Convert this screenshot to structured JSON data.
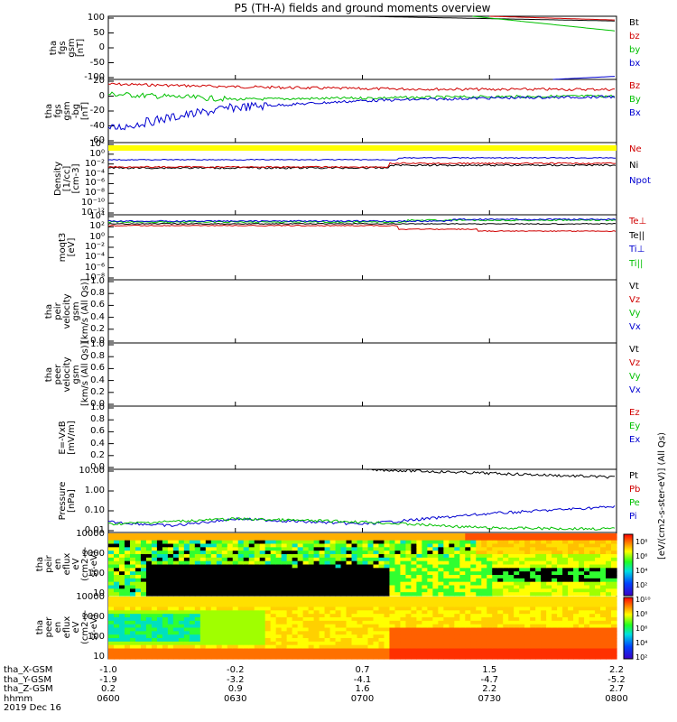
{
  "title": "P5 (TH-A) fields and ground moments overview",
  "panels": [
    {
      "id": "fgs_gsm",
      "ylabel": [
        "tha",
        "fgs",
        "gsm",
        "[nT]"
      ],
      "ticks": [
        "100",
        "50",
        "0",
        "-50",
        "-100"
      ],
      "legend": [
        {
          "t": "Bt",
          "c": "#000000"
        },
        {
          "t": "bz",
          "c": "#d00000"
        },
        {
          "t": "by",
          "c": "#00c000"
        },
        {
          "t": "bx",
          "c": "#0000d0"
        }
      ]
    },
    {
      "id": "fgs_gsm_dsl",
      "ylabel": [
        "tha",
        "fgs",
        "gsm",
        "-bg",
        "[nT]"
      ],
      "ticks": [
        "20",
        "0",
        "-20",
        "-40",
        "-60"
      ],
      "legend": [
        {
          "t": "Bz",
          "c": "#d00000"
        },
        {
          "t": "By",
          "c": "#00c000"
        },
        {
          "t": "Bx",
          "c": "#0000d0"
        }
      ]
    },
    {
      "id": "density",
      "ylabel": [
        "Density",
        "[1/cc]",
        "[cm-3]"
      ],
      "ticks": [
        "10²",
        "10⁰",
        "10⁻²",
        "10⁻⁴",
        "10⁻⁶",
        "10⁻⁸",
        "10⁻¹⁰",
        "10⁻¹²"
      ],
      "legend": [
        {
          "t": "Ne",
          "c": "#d00000"
        },
        {
          "t": "Ni",
          "c": "#000000"
        },
        {
          "t": "Npot",
          "c": "#0000d0"
        }
      ]
    },
    {
      "id": "temp",
      "ylabel": [
        "moqt3",
        "[eV]"
      ],
      "ticks": [
        "10⁴",
        "10²",
        "10⁰",
        "10⁻²",
        "10⁻⁴",
        "10⁻⁶",
        "10⁻⁸"
      ],
      "legend": [
        {
          "t": "Te⊥",
          "c": "#d00000"
        },
        {
          "t": "Te||",
          "c": "#000000"
        },
        {
          "t": "Ti⊥",
          "c": "#0000d0"
        },
        {
          "t": "Ti||",
          "c": "#00c000"
        }
      ]
    },
    {
      "id": "peir_vel",
      "ylabel": [
        "tha",
        "peir",
        "velocity",
        "gsm",
        "[km/s (All Qs)]"
      ],
      "ticks": [
        "1.0",
        "0.8",
        "0.6",
        "0.4",
        "0.2",
        "0.0"
      ],
      "legend": [
        {
          "t": "Vt",
          "c": "#000000"
        },
        {
          "t": "Vz",
          "c": "#d00000"
        },
        {
          "t": "Vy",
          "c": "#00c000"
        },
        {
          "t": "Vx",
          "c": "#0000d0"
        }
      ]
    },
    {
      "id": "peer_vel",
      "ylabel": [
        "tha",
        "peer",
        "velocity",
        "gsm",
        "[km/s (All Qs)]"
      ],
      "ticks": [
        "1.0",
        "0.8",
        "0.6",
        "0.4",
        "0.2",
        "0.0"
      ],
      "legend": [
        {
          "t": "Vt",
          "c": "#000000"
        },
        {
          "t": "Vz",
          "c": "#d00000"
        },
        {
          "t": "Vy",
          "c": "#00c000"
        },
        {
          "t": "Vx",
          "c": "#0000d0"
        }
      ]
    },
    {
      "id": "efield",
      "ylabel": [
        "E=-VxB",
        "[mV/m]"
      ],
      "ticks": [
        "1.0",
        "0.8",
        "0.6",
        "0.4",
        "0.2",
        "0.0"
      ],
      "legend": [
        {
          "t": "Ez",
          "c": "#d00000"
        },
        {
          "t": "Ey",
          "c": "#00c000"
        },
        {
          "t": "Ex",
          "c": "#0000d0"
        }
      ]
    },
    {
      "id": "pressure",
      "ylabel": [
        "Pressure",
        "[nPa]"
      ],
      "ticks": [
        "10.00",
        "1.00",
        "0.10",
        "0.01"
      ],
      "legend": [
        {
          "t": "Pt",
          "c": "#000000"
        },
        {
          "t": "Pb",
          "c": "#d00000"
        },
        {
          "t": "Pe",
          "c": "#00c000"
        },
        {
          "t": "Pi",
          "c": "#0000d0"
        }
      ]
    },
    {
      "id": "peir_en",
      "ylabel": [
        "tha",
        "peir",
        "en",
        "eflux",
        "eV",
        "(cm2-s-",
        "sr-eV)"
      ],
      "ticks": [
        "10000",
        "1000",
        "100",
        "10"
      ],
      "legend": []
    },
    {
      "id": "peer_en",
      "ylabel": [
        "tha",
        "peer",
        "en",
        "eflux",
        "eV",
        "(cm2-s-",
        "sr-eV)"
      ],
      "ticks": [
        "10000",
        "1000",
        "100",
        "10"
      ],
      "legend": []
    }
  ],
  "colorbar": {
    "label": "[eV/(cm2-s-ster-eV)] (All Qs)",
    "ticks": [
      "10⁸",
      "10⁶",
      "10⁴",
      "10²",
      "10¹⁰",
      "10⁸",
      "10⁶",
      "10⁴",
      "10²"
    ]
  },
  "ephemeris": {
    "rows": [
      {
        "label": "tha_X-GSM",
        "values": [
          "-1.0",
          "-0.2",
          "0.7",
          "1.5",
          "2.2"
        ]
      },
      {
        "label": "tha_Y-GSM",
        "values": [
          "-1.9",
          "-3.2",
          "-4.1",
          "-4.7",
          "-5.2"
        ]
      },
      {
        "label": "tha_Z-GSM",
        "values": [
          "0.2",
          "0.9",
          "1.6",
          "2.2",
          "2.7"
        ]
      },
      {
        "label": "hhmm",
        "values": [
          "0600",
          "0630",
          "0700",
          "0730",
          "0800"
        ]
      }
    ],
    "date": "2019 Dec 16"
  },
  "chart_data": {
    "type": "line",
    "x_times": [
      "06:00",
      "06:30",
      "07:00",
      "07:30",
      "08:00"
    ],
    "panels": [
      {
        "name": "fgs_gsm",
        "ylim": [
          -100,
          100
        ],
        "series": [
          {
            "name": "Bt",
            "x": [
              "07:00",
              "08:00"
            ],
            "values": [
              100,
              85
            ]
          },
          {
            "name": "bz",
            "x": [
              "07:30",
              "08:00"
            ],
            "values": [
              100,
              88
            ]
          },
          {
            "name": "by",
            "x": [
              "07:26",
              "08:00"
            ],
            "values": [
              100,
              53
            ]
          },
          {
            "name": "bx",
            "x": [
              "07:45",
              "08:00"
            ],
            "values": [
              -100,
              -90
            ]
          }
        ]
      },
      {
        "name": "fgs_gsm_dsl",
        "ylim": [
          -70,
          25
        ],
        "series": [
          {
            "name": "Bz",
            "x": [
              "06:00",
              "06:30",
              "07:00",
              "07:30",
              "08:00"
            ],
            "values": [
              18,
              14,
              11,
              10,
              10
            ]
          },
          {
            "name": "By",
            "x": [
              "06:00",
              "06:30",
              "07:00",
              "07:30",
              "08:00"
            ],
            "values": [
              3,
              -5,
              -3,
              -1,
              0
            ]
          },
          {
            "name": "Bx",
            "x": [
              "06:00",
              "06:15",
              "06:30",
              "07:00",
              "07:30",
              "08:00"
            ],
            "values": [
              -50,
              -32,
              -17,
              -7,
              -3,
              -1
            ]
          }
        ]
      },
      {
        "name": "pressure",
        "ylim": [
          0.005,
          20
        ],
        "log": true,
        "series": [
          {
            "name": "Pt",
            "x": [
              "07:00",
              "08:00"
            ],
            "values": [
              20,
              7
            ]
          },
          {
            "name": "Pi",
            "x": [
              "06:00",
              "06:15",
              "06:30",
              "07:00",
              "07:30",
              "08:00"
            ],
            "values": [
              0.02,
              0.012,
              0.03,
              0.015,
              0.06,
              0.15
            ]
          },
          {
            "name": "Pe",
            "x": [
              "06:00",
              "06:30",
              "07:00",
              "07:30",
              "08:00"
            ],
            "values": [
              0.015,
              0.03,
              0.02,
              0.009,
              0.008
            ]
          }
        ]
      }
    ]
  }
}
